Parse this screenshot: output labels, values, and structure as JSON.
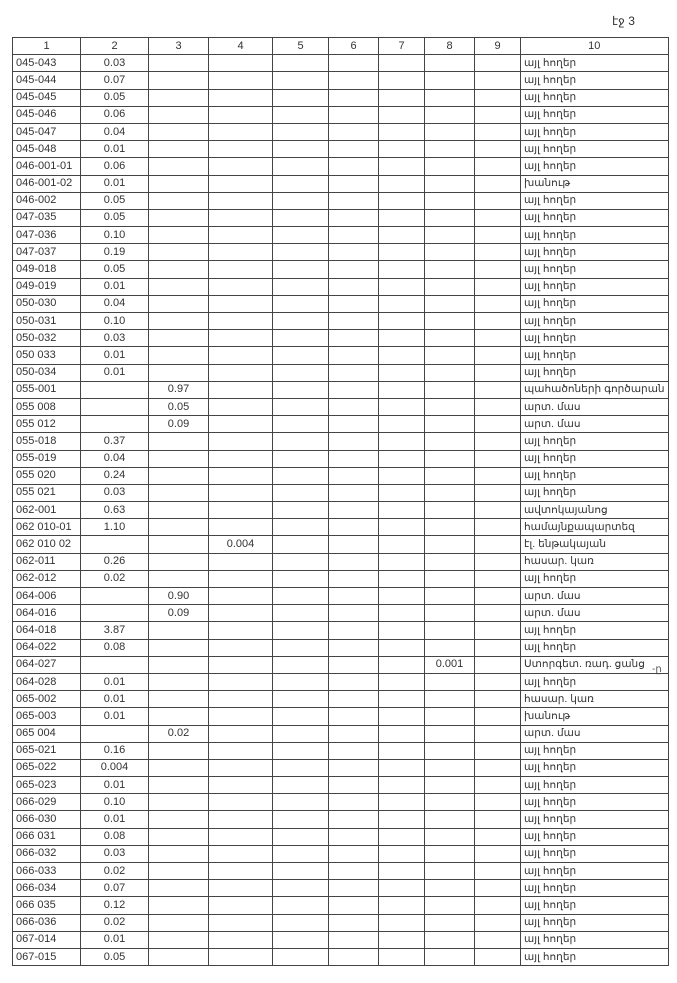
{
  "page_label": "էջ 3",
  "side_mark": "-ը",
  "columns": [
    "1",
    "2",
    "3",
    "4",
    "5",
    "6",
    "7",
    "8",
    "9",
    "10"
  ],
  "rows": [
    [
      "045-043",
      "0.03",
      "",
      "",
      "",
      "",
      "",
      "",
      "",
      "այլ հողեր"
    ],
    [
      "045-044",
      "0.07",
      "",
      "",
      "",
      "",
      "",
      "",
      "",
      "այլ հողեր"
    ],
    [
      "045-045",
      "0.05",
      "",
      "",
      "",
      "",
      "",
      "",
      "",
      "այլ հողեր"
    ],
    [
      "045-046",
      "0.06",
      "",
      "",
      "",
      "",
      "",
      "",
      "",
      "այլ հողեր"
    ],
    [
      "045-047",
      "0.04",
      "",
      "",
      "",
      "",
      "",
      "",
      "",
      "այլ հողեր"
    ],
    [
      "045-048",
      "0.01",
      "",
      "",
      "",
      "",
      "",
      "",
      "",
      "այլ հողեր"
    ],
    [
      "046-001-01",
      "0.06",
      "",
      "",
      "",
      "",
      "",
      "",
      "",
      "այլ հողեր"
    ],
    [
      "046-001-02",
      "0.01",
      "",
      "",
      "",
      "",
      "",
      "",
      "",
      "խանութ"
    ],
    [
      "046-002",
      "0.05",
      "",
      "",
      "",
      "",
      "",
      "",
      "",
      "այլ հողեր"
    ],
    [
      "047-035",
      "0.05",
      "",
      "",
      "",
      "",
      "",
      "",
      "",
      "այլ հողեր"
    ],
    [
      "047-036",
      "0.10",
      "",
      "",
      "",
      "",
      "",
      "",
      "",
      "այլ հողեր"
    ],
    [
      "047-037",
      "0.19",
      "",
      "",
      "",
      "",
      "",
      "",
      "",
      "այլ հողեր"
    ],
    [
      "049-018",
      "0.05",
      "",
      "",
      "",
      "",
      "",
      "",
      "",
      "այլ հողեր"
    ],
    [
      "049-019",
      "0.01",
      "",
      "",
      "",
      "",
      "",
      "",
      "",
      "այլ հողեր"
    ],
    [
      "050-030",
      "0.04",
      "",
      "",
      "",
      "",
      "",
      "",
      "",
      "այլ հողեր"
    ],
    [
      "050-031",
      "0.10",
      "",
      "",
      "",
      "",
      "",
      "",
      "",
      "այլ հողեր"
    ],
    [
      "050-032",
      "0.03",
      "",
      "",
      "",
      "",
      "",
      "",
      "",
      "այլ հողեր"
    ],
    [
      "050 033",
      "0.01",
      "",
      "",
      "",
      "",
      "",
      "",
      "",
      "այլ հողեր"
    ],
    [
      "050-034",
      "0.01",
      "",
      "",
      "",
      "",
      "",
      "",
      "",
      "այլ հողեր"
    ],
    [
      "055-001",
      "",
      "0.97",
      "",
      "",
      "",
      "",
      "",
      "",
      "պահածոների գործարան"
    ],
    [
      "055 008",
      "",
      "0.05",
      "",
      "",
      "",
      "",
      "",
      "",
      "արտ. մաս"
    ],
    [
      "055 012",
      "",
      "0.09",
      "",
      "",
      "",
      "",
      "",
      "",
      "արտ. մաս"
    ],
    [
      "055-018",
      "0.37",
      "",
      "",
      "",
      "",
      "",
      "",
      "",
      "այլ հողեր"
    ],
    [
      "055-019",
      "0.04",
      "",
      "",
      "",
      "",
      "",
      "",
      "",
      "այլ հողեր"
    ],
    [
      "055 020",
      "0.24",
      "",
      "",
      "",
      "",
      "",
      "",
      "",
      "այլ հողեր"
    ],
    [
      "055 021",
      "0.03",
      "",
      "",
      "",
      "",
      "",
      "",
      "",
      "այլ հողեր"
    ],
    [
      "062-001",
      "0.63",
      "",
      "",
      "",
      "",
      "",
      "",
      "",
      "ավտոկայանոց"
    ],
    [
      "062 010-01",
      "1.10",
      "",
      "",
      "",
      "",
      "",
      "",
      "",
      "համայնքապարտեզ"
    ],
    [
      "062 010 02",
      "",
      "",
      "0.004",
      "",
      "",
      "",
      "",
      "",
      "էլ. ենթակայան"
    ],
    [
      "062-011",
      "0.26",
      "",
      "",
      "",
      "",
      "",
      "",
      "",
      "հասար. կառ"
    ],
    [
      "062-012",
      "0.02",
      "",
      "",
      "",
      "",
      "",
      "",
      "",
      "այլ հողեր"
    ],
    [
      "064-006",
      "",
      "0.90",
      "",
      "",
      "",
      "",
      "",
      "",
      "արտ. մաս"
    ],
    [
      "064-016",
      "",
      "0.09",
      "",
      "",
      "",
      "",
      "",
      "",
      "արտ. մաս"
    ],
    [
      "064-018",
      "3.87",
      "",
      "",
      "",
      "",
      "",
      "",
      "",
      "այլ հողեր"
    ],
    [
      "064-022",
      "0.08",
      "",
      "",
      "",
      "",
      "",
      "",
      "",
      "այլ հողեր"
    ],
    [
      "064-027",
      "",
      "",
      "",
      "",
      "",
      "",
      "0.001",
      "",
      "Ստորգետ. ռադ. ցանց"
    ],
    [
      "064-028",
      "0.01",
      "",
      "",
      "",
      "",
      "",
      "",
      "",
      "այլ հողեր"
    ],
    [
      "065-002",
      "0.01",
      "",
      "",
      "",
      "",
      "",
      "",
      "",
      "հասար. կառ"
    ],
    [
      "065-003",
      "0.01",
      "",
      "",
      "",
      "",
      "",
      "",
      "",
      "խանութ"
    ],
    [
      "065 004",
      "",
      "0.02",
      "",
      "",
      "",
      "",
      "",
      "",
      "արտ. մաս"
    ],
    [
      "065-021",
      "0.16",
      "",
      "",
      "",
      "",
      "",
      "",
      "",
      "այլ հողեր"
    ],
    [
      "065-022",
      "0.004",
      "",
      "",
      "",
      "",
      "",
      "",
      "",
      "այլ հողեր"
    ],
    [
      "065-023",
      "0.01",
      "",
      "",
      "",
      "",
      "",
      "",
      "",
      "այլ հողեր"
    ],
    [
      "066-029",
      "0.10",
      "",
      "",
      "",
      "",
      "",
      "",
      "",
      "այլ հողեր"
    ],
    [
      "066-030",
      "0.01",
      "",
      "",
      "",
      "",
      "",
      "",
      "",
      "այլ հողեր"
    ],
    [
      "066 031",
      "0.08",
      "",
      "",
      "",
      "",
      "",
      "",
      "",
      "այլ հողեր"
    ],
    [
      "066-032",
      "0.03",
      "",
      "",
      "",
      "",
      "",
      "",
      "",
      "այլ հողեր"
    ],
    [
      "066-033",
      "0.02",
      "",
      "",
      "",
      "",
      "",
      "",
      "",
      "այլ հողեր"
    ],
    [
      "066-034",
      "0.07",
      "",
      "",
      "",
      "",
      "",
      "",
      "",
      "այլ հողեր"
    ],
    [
      "066 035",
      "0.12",
      "",
      "",
      "",
      "",
      "",
      "",
      "",
      "այլ հողեր"
    ],
    [
      "066-036",
      "0.02",
      "",
      "",
      "",
      "",
      "",
      "",
      "",
      "այլ հողեր"
    ],
    [
      "067-014",
      "0.01",
      "",
      "",
      "",
      "",
      "",
      "",
      "",
      "այլ հողեր"
    ],
    [
      "067-015",
      "0.05",
      "",
      "",
      "",
      "",
      "",
      "",
      "",
      "այլ հողեր"
    ]
  ]
}
